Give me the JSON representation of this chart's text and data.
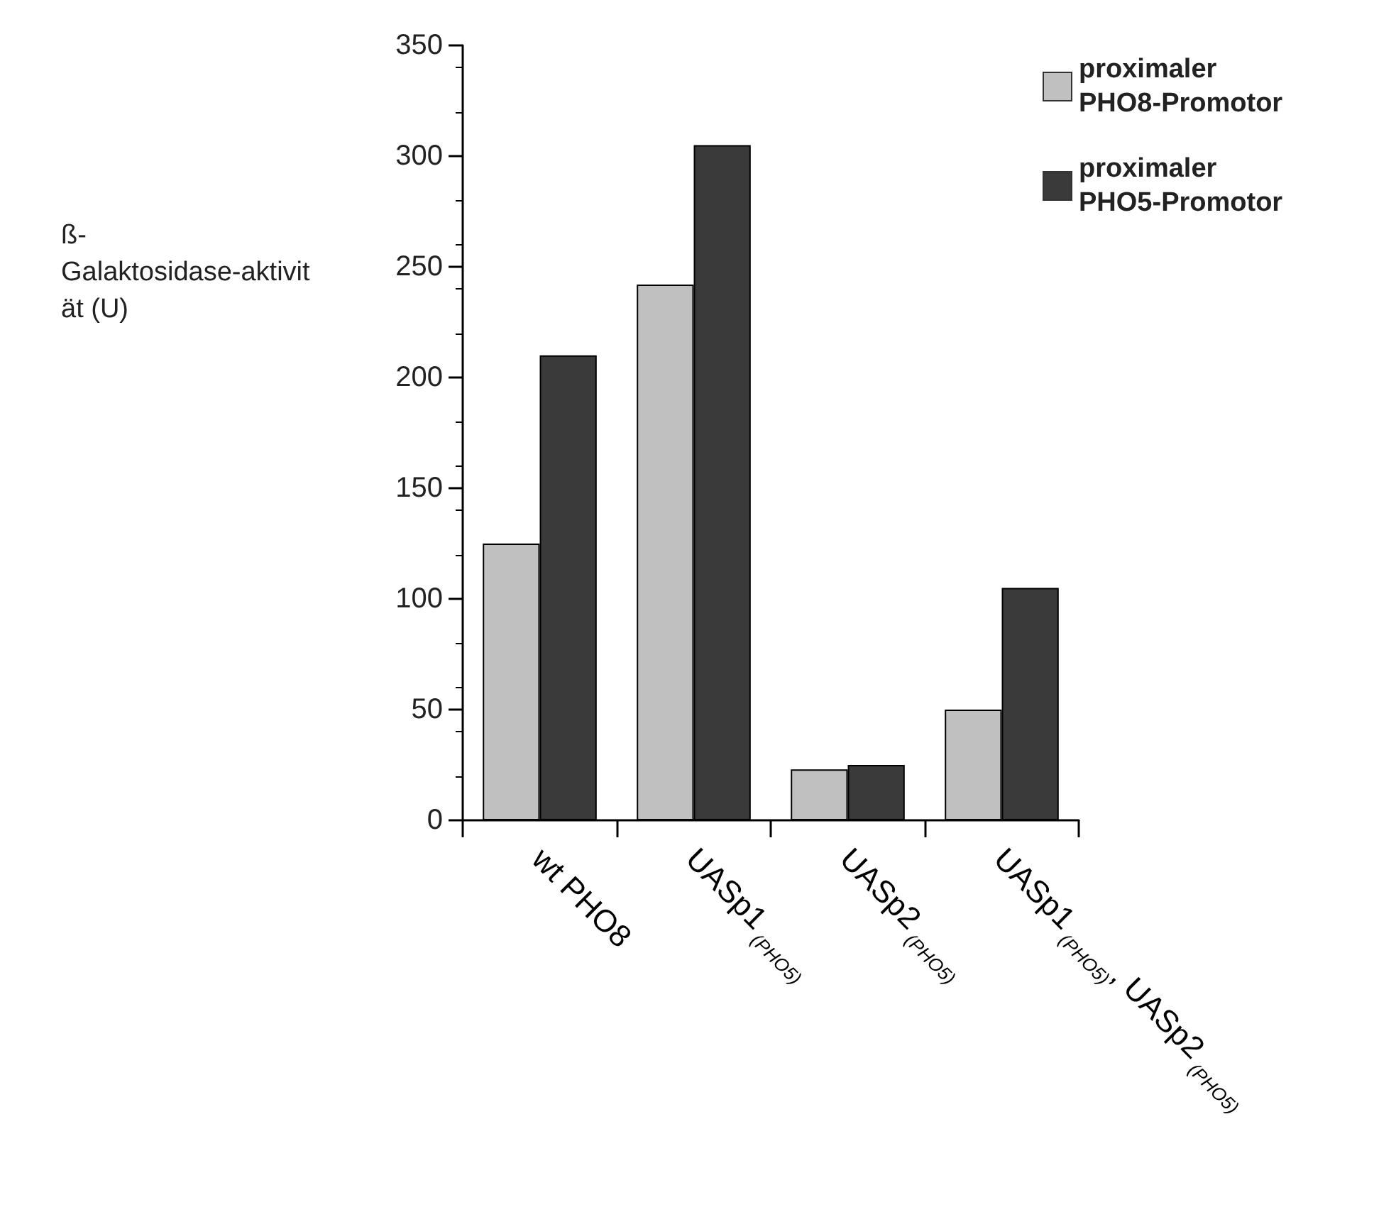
{
  "chart_data": {
    "type": "bar",
    "ylabel": "ß-Galaktosidase-aktivität (U)",
    "categories": [
      "wt PHO8",
      "UASp1$_{(PHO5)}$",
      "UASp2$_{(PHO5)}$",
      "UASp1$_{(PHO5)}$, UASp2$_{(PHO5)}$"
    ],
    "series": [
      {
        "name": "proximaler PHO8-Promotor",
        "color": "#c0c0c0",
        "values": [
          125,
          242,
          23,
          50
        ]
      },
      {
        "name": "proximaler PHO5-Promotor",
        "color": "#3a3a3a",
        "values": [
          210,
          305,
          25,
          105
        ]
      }
    ],
    "ylim": [
      0,
      350
    ],
    "yticks": [
      0,
      50,
      100,
      150,
      200,
      250,
      300,
      350
    ],
    "grid": false,
    "legend": "top right"
  }
}
